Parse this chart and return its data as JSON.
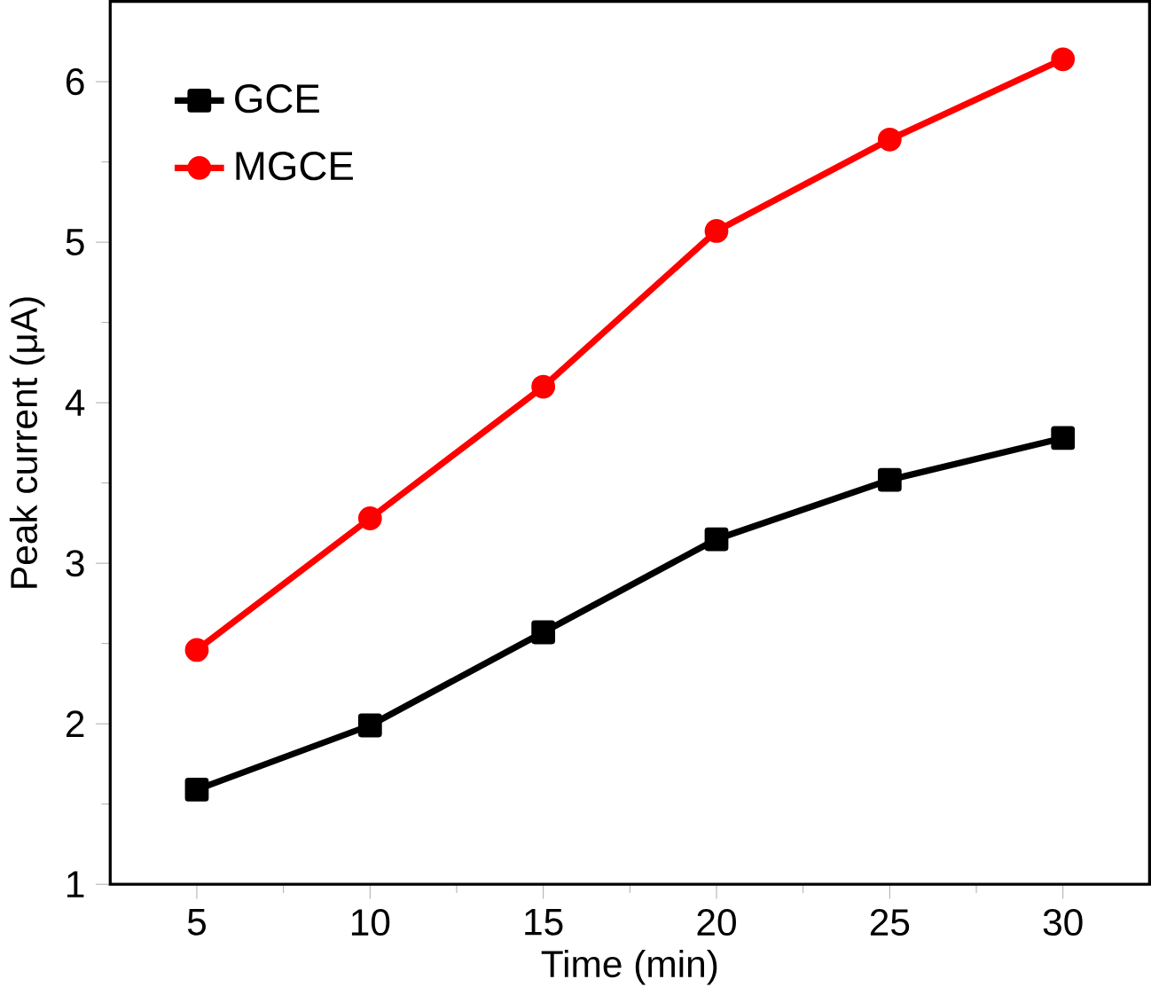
{
  "chart_data": {
    "type": "line",
    "xlabel": "Time (min)",
    "ylabel": "Peak current (μA)",
    "x": [
      5,
      10,
      15,
      20,
      25,
      30
    ],
    "series": [
      {
        "name": "GCE",
        "color": "#000000",
        "marker": "square",
        "values": [
          1.59,
          1.99,
          2.57,
          3.15,
          3.52,
          3.78
        ]
      },
      {
        "name": "MGCE",
        "color": "#ff0000",
        "marker": "circle",
        "values": [
          2.46,
          3.28,
          4.1,
          5.07,
          5.64,
          6.14
        ]
      }
    ],
    "xlim": [
      2.5,
      32.5
    ],
    "ylim": [
      1,
      6.5
    ],
    "xticks": [
      5,
      10,
      15,
      20,
      25,
      30
    ],
    "yticks": [
      1,
      2,
      3,
      4,
      5,
      6
    ],
    "grid": false,
    "legend": "top left",
    "line_style": "solid"
  }
}
